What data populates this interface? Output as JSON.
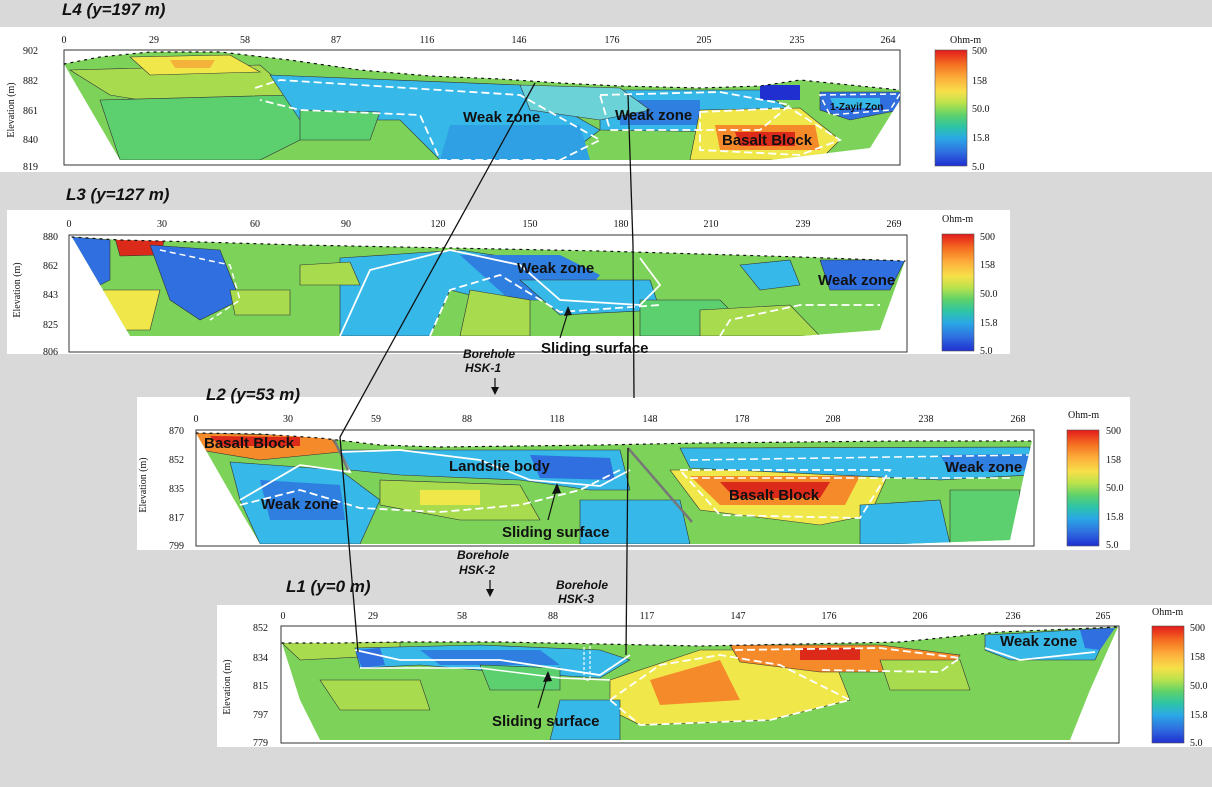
{
  "panels": [
    {
      "id": "l4",
      "title": "L4 (y=197 m)",
      "x_ticks": [
        "0",
        "29",
        "58",
        "87",
        "116",
        "146",
        "176",
        "205",
        "235",
        "264"
      ],
      "y_ticks": [
        "902",
        "882",
        "861",
        "840",
        "819"
      ],
      "y_label": "Elevation (m)",
      "colorbar_unit": "Ohm-m",
      "colorbar_ticks": [
        "500",
        "158",
        "50.0",
        "15.8",
        "5.0"
      ],
      "annotations": [
        "Weak zone",
        "Weak zone",
        "Basalt Block",
        "1-Zayif Zon"
      ]
    },
    {
      "id": "l3",
      "title": "L3 (y=127 m)",
      "x_ticks": [
        "0",
        "30",
        "60",
        "90",
        "120",
        "150",
        "180",
        "210",
        "239",
        "269"
      ],
      "y_ticks": [
        "880",
        "862",
        "843",
        "825",
        "806"
      ],
      "y_label": "Elevation (m)",
      "colorbar_unit": "Ohm-m",
      "colorbar_ticks": [
        "500",
        "158",
        "50.0",
        "15.8",
        "5.0"
      ],
      "annotations": [
        "Weak zone",
        "Weak zone",
        "Sliding surface"
      ]
    },
    {
      "id": "l2",
      "title": "L2 (y=53 m)",
      "x_ticks": [
        "0",
        "30",
        "59",
        "88",
        "118",
        "148",
        "178",
        "208",
        "238",
        "268"
      ],
      "y_ticks": [
        "870",
        "852",
        "835",
        "817",
        "799"
      ],
      "y_label": "Elevation (m)",
      "colorbar_unit": "Ohm-m",
      "colorbar_ticks": [
        "500",
        "158",
        "50.0",
        "15.8",
        "5.0"
      ],
      "annotations": [
        "Basalt Block",
        "Landslie body",
        "Weak zone",
        "Basalt Block",
        "Weak zone",
        "Sliding surface"
      ]
    },
    {
      "id": "l1",
      "title": "L1 (y=0 m)",
      "x_ticks": [
        "0",
        "29",
        "58",
        "88",
        "117",
        "147",
        "176",
        "206",
        "236",
        "265"
      ],
      "y_ticks": [
        "852",
        "834",
        "815",
        "797",
        "779"
      ],
      "y_label": "Elevation (m)",
      "colorbar_unit": "Ohm-m",
      "colorbar_ticks": [
        "500",
        "158",
        "50.0",
        "15.8",
        "5.0"
      ],
      "annotations": [
        "Weak zone",
        "Sliding surface"
      ]
    }
  ],
  "boreholes": [
    {
      "line1": "Borehole",
      "line2": "HSK-1"
    },
    {
      "line1": "Borehole",
      "line2": "HSK-2"
    },
    {
      "line1": "Borehole",
      "line2": "HSK-3"
    }
  ],
  "colors": {
    "colorbar": [
      "#e31a1c",
      "#f46d20",
      "#fdae3b",
      "#f7e04a",
      "#b9e24c",
      "#5fd26a",
      "#2ec4a4",
      "#2aa9e6",
      "#2f6fe0",
      "#1f2fd0"
    ],
    "section_base": "#7dd35a",
    "weak": "#36b8e8",
    "deep_weak": "#2a66d8",
    "mid": "#a8dc4e",
    "high": "#f0e84a",
    "basalt": "#f58a2a",
    "core": "#dc2a1a"
  }
}
